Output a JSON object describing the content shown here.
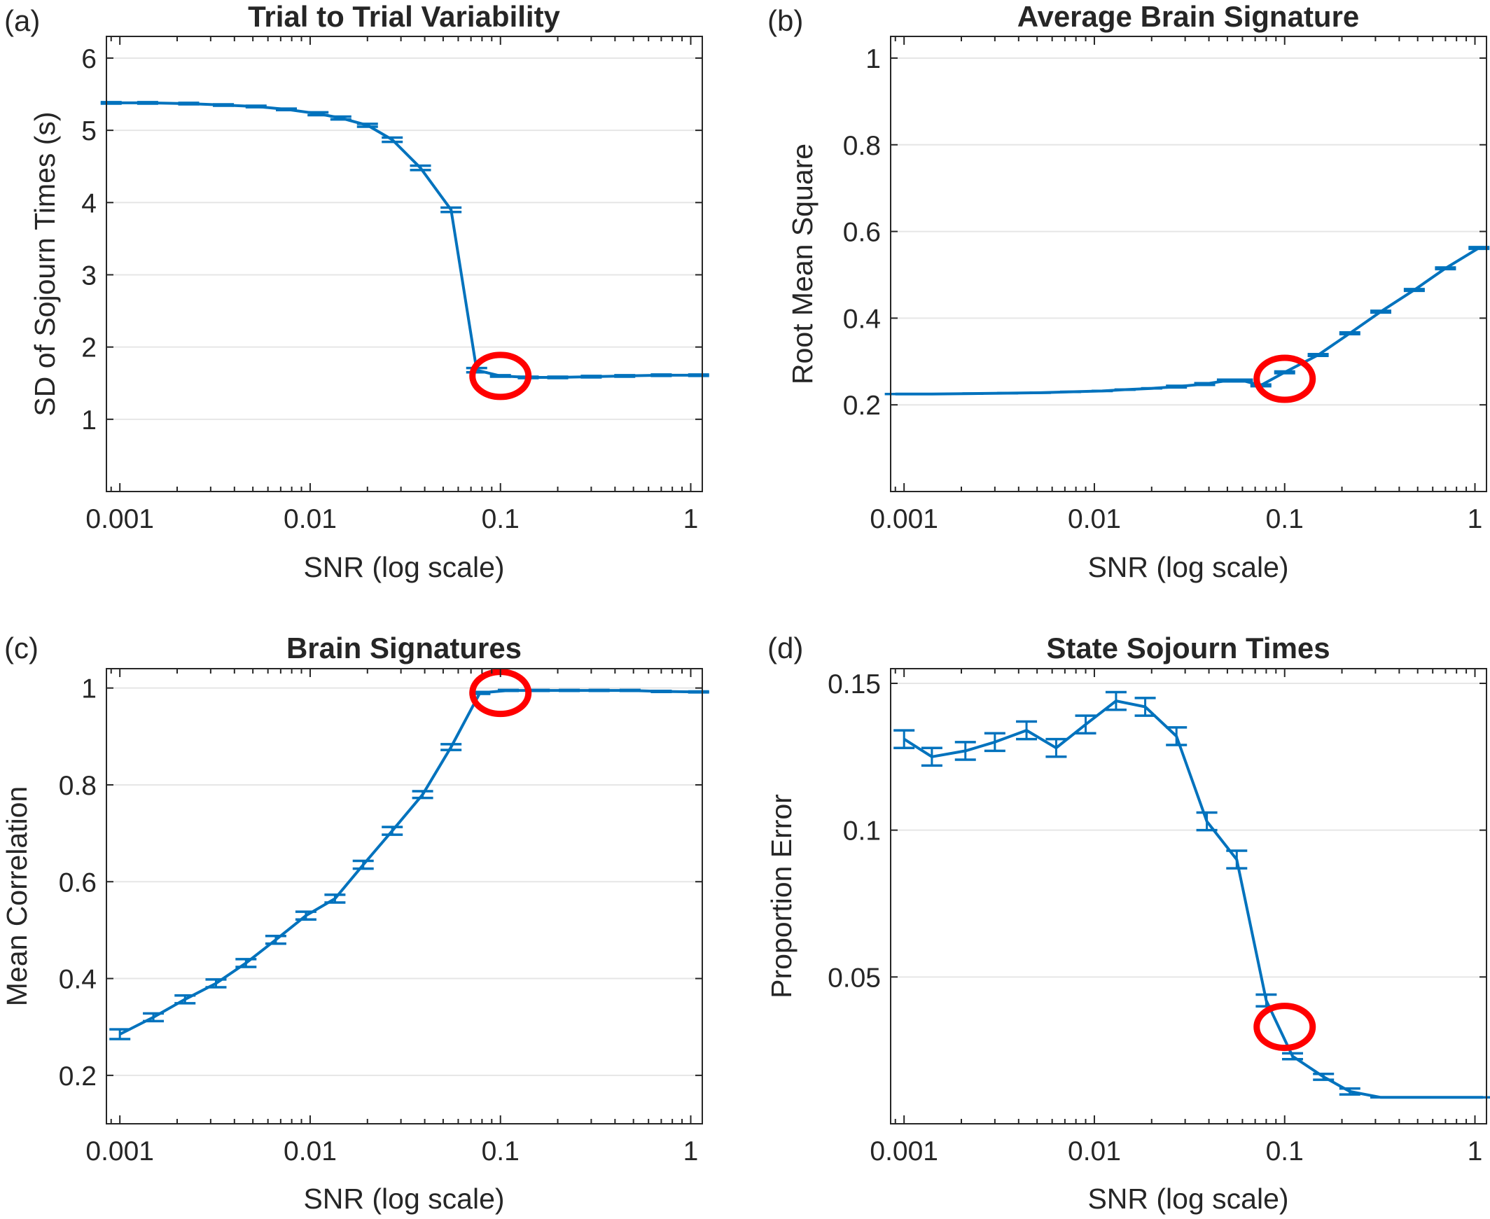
{
  "chart_data": [
    {
      "type": "line",
      "panel_label": "(a)",
      "title": "Trial to Trial Variability",
      "xlabel": "SNR (log scale)",
      "ylabel": "SD of Sojourn Times (s)",
      "xscale": "log",
      "xlim": [
        0.00085,
        1.15
      ],
      "ylim": [
        0,
        6.3
      ],
      "xticks": [
        0.001,
        0.01,
        0.1,
        1
      ],
      "xtick_labels": [
        "0.001",
        "0.01",
        "0.1",
        "1"
      ],
      "yticks": [
        1,
        2,
        3,
        4,
        5,
        6
      ],
      "ytick_labels": [
        "1",
        "2",
        "3",
        "4",
        "5",
        "6"
      ],
      "grid": "horizontal",
      "line_color": "#0072BD",
      "highlight_color": "#FF0000",
      "highlight": {
        "x": 0.1,
        "y": 1.6
      },
      "series": [
        {
          "x": [
            0.0009,
            0.0014,
            0.0023,
            0.0035,
            0.0052,
            0.0075,
            0.011,
            0.0145,
            0.02,
            0.027,
            0.038,
            0.055,
            0.075,
            0.1,
            0.14,
            0.2,
            0.3,
            0.45,
            0.7,
            1.1
          ],
          "y": [
            5.38,
            5.38,
            5.37,
            5.35,
            5.33,
            5.29,
            5.23,
            5.17,
            5.07,
            4.87,
            4.48,
            3.9,
            1.68,
            1.6,
            1.58,
            1.58,
            1.59,
            1.6,
            1.61,
            1.61
          ],
          "err": [
            0.01,
            0.01,
            0.01,
            0.01,
            0.01,
            0.01,
            0.02,
            0.02,
            0.02,
            0.03,
            0.03,
            0.03,
            0.03,
            0.01,
            0.01,
            0.01,
            0.01,
            0.01,
            0.01,
            0.01
          ]
        }
      ]
    },
    {
      "type": "line",
      "panel_label": "(b)",
      "title": "Average Brain Signature",
      "xlabel": "SNR (log scale)",
      "ylabel": "Root Mean Square",
      "xscale": "log",
      "xlim": [
        0.00085,
        1.15
      ],
      "ylim": [
        0,
        1.05
      ],
      "xticks": [
        0.001,
        0.01,
        0.1,
        1
      ],
      "xtick_labels": [
        "0.001",
        "0.01",
        "0.1",
        "1"
      ],
      "yticks": [
        0.2,
        0.4,
        0.6,
        0.8,
        1
      ],
      "ytick_labels": [
        "0.2",
        "0.4",
        "0.6",
        "0.8",
        "1"
      ],
      "grid": "horizontal",
      "line_color": "#0072BD",
      "highlight_color": "#FF0000",
      "highlight": {
        "x": 0.1,
        "y": 0.26
      },
      "series": [
        {
          "x": [
            0.0009,
            0.0014,
            0.0023,
            0.0035,
            0.0052,
            0.0075,
            0.011,
            0.0145,
            0.02,
            0.027,
            0.038,
            0.05,
            0.06,
            0.075,
            0.1,
            0.15,
            0.22,
            0.32,
            0.48,
            0.7,
            1.05
          ],
          "y": [
            0.225,
            0.225,
            0.226,
            0.227,
            0.228,
            0.23,
            0.232,
            0.235,
            0.238,
            0.242,
            0.248,
            0.256,
            0.256,
            0.245,
            0.275,
            0.315,
            0.365,
            0.415,
            0.465,
            0.515,
            0.562
          ],
          "err": [
            0,
            0,
            0,
            0,
            0,
            0,
            0,
            0,
            0,
            0.002,
            0.002,
            0.002,
            0.002,
            0.002,
            0.002,
            0.002,
            0.002,
            0.002,
            0.002,
            0.002,
            0.002
          ]
        }
      ]
    },
    {
      "type": "line",
      "panel_label": "(c)",
      "title": "Brain Signatures",
      "xlabel": "SNR (log scale)",
      "ylabel": "Mean Correlation",
      "xscale": "log",
      "xlim": [
        0.00085,
        1.15
      ],
      "ylim": [
        0.1,
        1.04
      ],
      "xticks": [
        0.001,
        0.01,
        0.1,
        1
      ],
      "xtick_labels": [
        "0.001",
        "0.01",
        "0.1",
        "1"
      ],
      "yticks": [
        0.2,
        0.4,
        0.6,
        0.8,
        1
      ],
      "ytick_labels": [
        "0.2",
        "0.4",
        "0.6",
        "0.8",
        "1"
      ],
      "grid": "horizontal",
      "line_color": "#0072BD",
      "highlight_color": "#FF0000",
      "highlight": {
        "x": 0.1,
        "y": 0.99
      },
      "series": [
        {
          "x": [
            0.001,
            0.0015,
            0.0022,
            0.0032,
            0.0046,
            0.0066,
            0.0095,
            0.0135,
            0.019,
            0.027,
            0.039,
            0.055,
            0.078,
            0.11,
            0.16,
            0.23,
            0.33,
            0.48,
            0.7,
            1.1
          ],
          "y": [
            0.285,
            0.32,
            0.357,
            0.39,
            0.432,
            0.48,
            0.53,
            0.565,
            0.635,
            0.705,
            0.78,
            0.878,
            0.99,
            0.995,
            0.995,
            0.995,
            0.995,
            0.995,
            0.993,
            0.992
          ],
          "err": [
            0.01,
            0.008,
            0.008,
            0.008,
            0.008,
            0.008,
            0.008,
            0.008,
            0.008,
            0.008,
            0.007,
            0.006,
            0.002,
            0.001,
            0.001,
            0.001,
            0.001,
            0.001,
            0.001,
            0.001
          ]
        }
      ]
    },
    {
      "type": "line",
      "panel_label": "(d)",
      "title": "State Sojourn Times",
      "xlabel": "SNR (log scale)",
      "ylabel": "Proportion Error",
      "xscale": "log",
      "xlim": [
        0.00085,
        1.15
      ],
      "ylim": [
        0,
        0.155
      ],
      "xticks": [
        0.001,
        0.01,
        0.1,
        1
      ],
      "xtick_labels": [
        "0.001",
        "0.01",
        "0.1",
        "1"
      ],
      "yticks": [
        0.05,
        0.1,
        0.15
      ],
      "ytick_labels": [
        "0.05",
        "0.1",
        "0.15"
      ],
      "grid": "horizontal",
      "line_color": "#0072BD",
      "highlight_color": "#FF0000",
      "highlight": {
        "x": 0.1,
        "y": 0.033
      },
      "series": [
        {
          "x": [
            0.001,
            0.0014,
            0.0021,
            0.003,
            0.0044,
            0.0063,
            0.009,
            0.013,
            0.0185,
            0.027,
            0.039,
            0.056,
            0.08,
            0.11,
            0.16,
            0.22,
            0.32,
            0.46,
            0.66,
            1.1
          ],
          "y": [
            0.131,
            0.125,
            0.127,
            0.13,
            0.134,
            0.128,
            0.136,
            0.144,
            0.142,
            0.132,
            0.103,
            0.09,
            0.042,
            0.023,
            0.016,
            0.011,
            0.009,
            0.009,
            0.009,
            0.009
          ],
          "err": [
            0.003,
            0.003,
            0.003,
            0.003,
            0.003,
            0.003,
            0.003,
            0.003,
            0.003,
            0.003,
            0.003,
            0.003,
            0.002,
            0.001,
            0.001,
            0.001,
            0,
            0,
            0,
            0
          ]
        }
      ]
    }
  ]
}
